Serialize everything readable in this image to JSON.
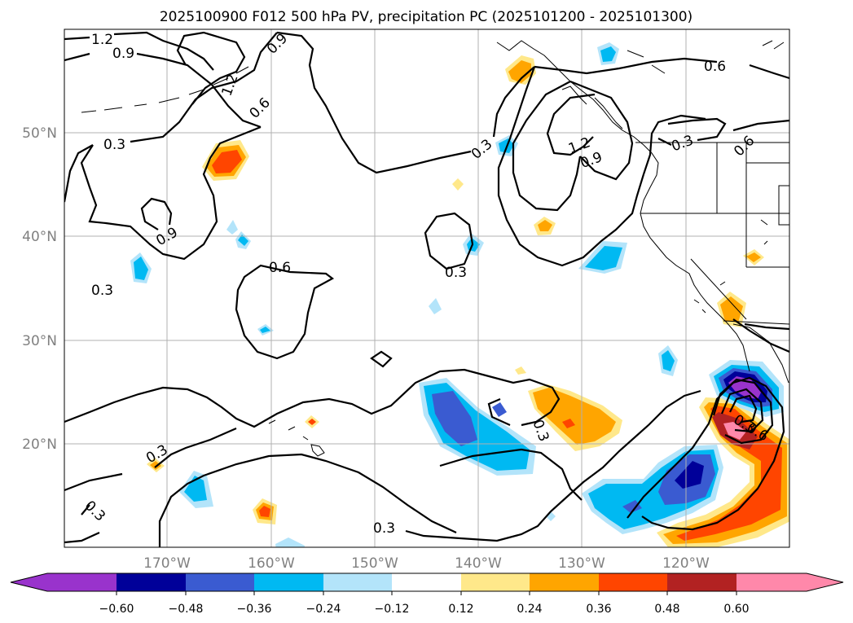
{
  "title": "2025100900 F012 500 hPa PV, precipitation PC (2025101200 - 2025101300)",
  "map": {
    "lon_ticks": [
      "170°W",
      "160°W",
      "150°W",
      "140°W",
      "130°W",
      "120°W"
    ],
    "lat_ticks": [
      "50°N",
      "40°N",
      "30°N",
      "20°N"
    ],
    "grid": true
  },
  "contour_labels": [
    "1.2",
    "0.9",
    "0.9",
    "0.6",
    "1.2",
    "0.3",
    "0.3",
    "0.9",
    "0.6",
    "0.3",
    "0.3",
    "0.3",
    "0.3",
    "0.3",
    "0.3",
    "0.3",
    "1.2",
    "0.9",
    "0.6",
    "0.6",
    "0.3",
    "0.6"
  ],
  "colorbar": {
    "ticks": [
      "−0.60",
      "−0.48",
      "−0.36",
      "−0.24",
      "−0.12",
      "0.12",
      "0.24",
      "0.36",
      "0.48",
      "0.60"
    ],
    "colors": [
      "#9933cc",
      "#000099",
      "#3a5bd1",
      "#00b9f2",
      "#b3e4fa",
      "#ffffff",
      "#ffe88a",
      "#ffa500",
      "#ff4500",
      "#b22222",
      "#ff88aa",
      "#ff88aa"
    ]
  }
}
